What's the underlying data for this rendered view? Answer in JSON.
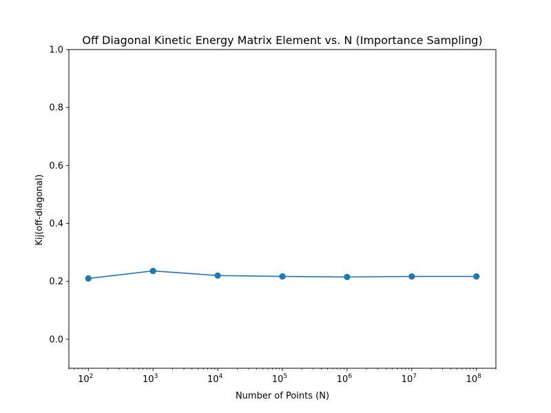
{
  "chart_data": {
    "type": "line",
    "title": "Off Diagonal Kinetic Energy Matrix Element vs. N (Importance Sampling)",
    "xlabel": "Number of Points (N)",
    "ylabel": "Kij(off-diagonal)",
    "x_scale": "log",
    "x_ticks": [
      {
        "value": 100,
        "base": "10",
        "exp": "2"
      },
      {
        "value": 1000,
        "base": "10",
        "exp": "3"
      },
      {
        "value": 10000,
        "base": "10",
        "exp": "4"
      },
      {
        "value": 100000,
        "base": "10",
        "exp": "5"
      },
      {
        "value": 1000000,
        "base": "10",
        "exp": "6"
      },
      {
        "value": 10000000,
        "base": "10",
        "exp": "7"
      },
      {
        "value": 100000000,
        "base": "10",
        "exp": "8"
      }
    ],
    "y_ticks": [
      {
        "value": 0.0,
        "label": "0.0"
      },
      {
        "value": 0.2,
        "label": "0.2"
      },
      {
        "value": 0.4,
        "label": "0.4"
      },
      {
        "value": 0.6,
        "label": "0.6"
      },
      {
        "value": 0.8,
        "label": "0.8"
      },
      {
        "value": 1.0,
        "label": "1.0"
      }
    ],
    "xlim": [
      50,
      200000000
    ],
    "ylim": [
      -0.1,
      1.0
    ],
    "grid": false,
    "series": [
      {
        "color": "#1f77b4",
        "marker": "circle",
        "x": [
          100,
          1000,
          10000,
          100000,
          1000000,
          10000000,
          100000000
        ],
        "y": [
          0.21,
          0.236,
          0.22,
          0.217,
          0.215,
          0.217,
          0.217
        ]
      }
    ]
  }
}
